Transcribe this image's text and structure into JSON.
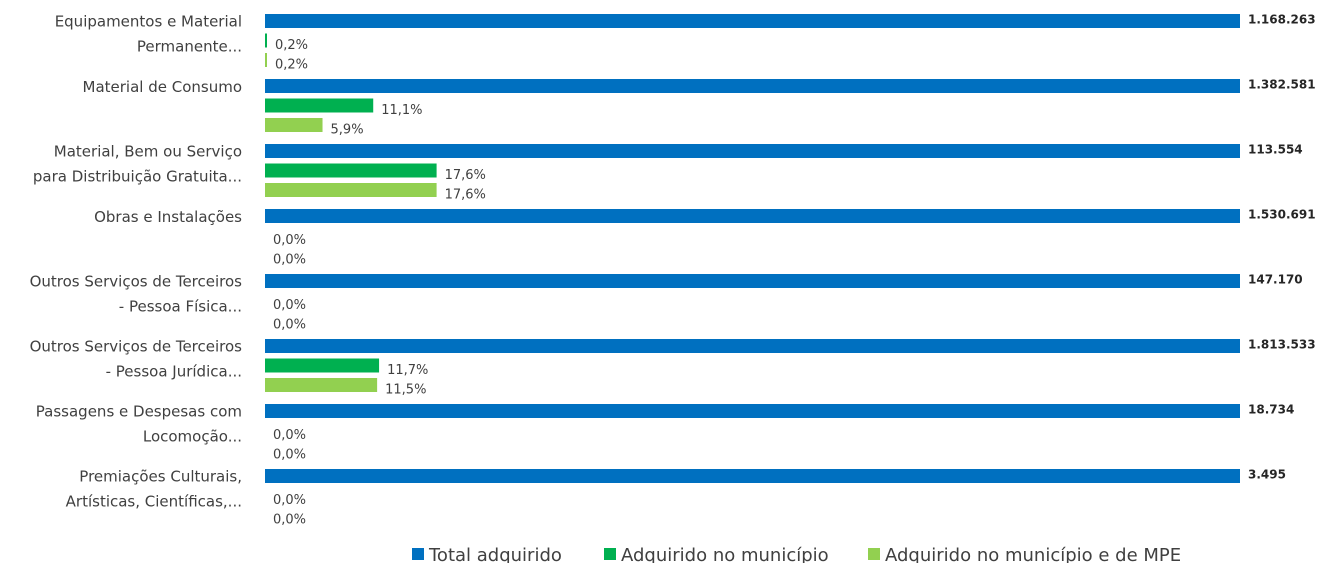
{
  "chart_data": {
    "type": "bar",
    "orientation": "horizontal",
    "categories": [
      "Equipamentos e Material\nPermanente...",
      "Material de Consumo",
      "Material, Bem ou Serviço\npara Distribuição Gratuita...",
      "Obras e Instalações",
      "Outros Serviços de Terceiros\n- Pessoa Física...",
      "Outros Serviços de Terceiros\n- Pessoa Jurídica...",
      "Passagens e Despesas com\nLocomoção...",
      "Premiações Culturais,\nArtísticas, Científicas,..."
    ],
    "xlim": [
      0,
      100
    ],
    "series": [
      {
        "name": "Total adquirido",
        "color": "#0070c0",
        "values": [
          1168263,
          1382581,
          113554,
          1530691,
          147170,
          1813533,
          18734,
          3495
        ],
        "value_labels": [
          "1.168.263",
          "1.382.581",
          "113.554",
          "1.530.691",
          "147.170",
          "1.813.533",
          "18.734",
          "3.495"
        ]
      },
      {
        "name": "Adquirido no município",
        "color": "#00b050",
        "values": [
          0.2,
          11.1,
          17.6,
          0.0,
          0.0,
          11.7,
          0.0,
          0.0
        ],
        "value_labels": [
          "0,2%",
          "11,1%",
          "17,6%",
          "0,0%",
          "0,0%",
          "11,7%",
          "0,0%",
          "0,0%"
        ]
      },
      {
        "name": "Adquirido no município e de MPE",
        "color": "#92d050",
        "values": [
          0.2,
          5.9,
          17.6,
          0.0,
          0.0,
          11.5,
          0.0,
          0.0
        ],
        "value_labels": [
          "0,2%",
          "5,9%",
          "17,6%",
          "0,0%",
          "0,0%",
          "11,5%",
          "0,0%",
          "0,0%"
        ]
      }
    ],
    "legend": "bottom"
  }
}
